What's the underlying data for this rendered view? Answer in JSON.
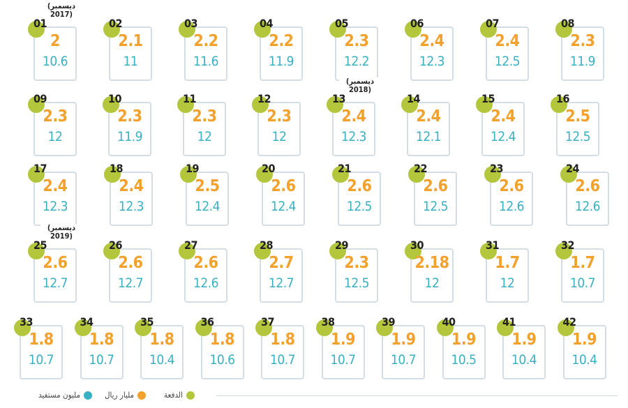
{
  "chart_data": {
    "type": "table",
    "columns": [
      "الدفعة",
      "مليار ريال",
      "مليون مستفيد"
    ],
    "installments": [
      "01",
      "02",
      "03",
      "04",
      "05",
      "06",
      "07",
      "08",
      "09",
      "10",
      "11",
      "12",
      "13",
      "14",
      "15",
      "16",
      "17",
      "18",
      "19",
      "20",
      "21",
      "22",
      "23",
      "24",
      "25",
      "26",
      "27",
      "28",
      "29",
      "30",
      "31",
      "32",
      "33",
      "34",
      "35",
      "36",
      "37",
      "38",
      "39",
      "40",
      "41",
      "42"
    ],
    "billion_riyal": [
      "2",
      "2.1",
      "2.2",
      "2.2",
      "2.3",
      "2.4",
      "2.4",
      "2.3",
      "2.3",
      "2.3",
      "2.3",
      "2.3",
      "2.4",
      "2.4",
      "2.4",
      "2.5",
      "2.4",
      "2.4",
      "2.5",
      "2.6",
      "2.6",
      "2.6",
      "2.6",
      "2.6",
      "2.6",
      "2.6",
      "2.6",
      "2.7",
      "2.3",
      "2.18",
      "1.7",
      "1.7",
      "1.8",
      "1.8",
      "1.8",
      "1.8",
      "1.8",
      "1.9",
      "1.9",
      "1.9",
      "1.9",
      "1.9"
    ],
    "million_beneficiaries": [
      "10.6",
      "11",
      "11.6",
      "11.9",
      "12.2",
      "12.3",
      "12.5",
      "11.9",
      "12",
      "11.9",
      "12",
      "12",
      "12.3",
      "12.1",
      "12.4",
      "12.5",
      "12.3",
      "12.3",
      "12.4",
      "12.4",
      "12.5",
      "12.5",
      "12.6",
      "12.6",
      "12.7",
      "12.7",
      "12.6",
      "12.7",
      "12.5",
      "12",
      "12",
      "10.7",
      "10.7",
      "10.7",
      "10.4",
      "10.6",
      "10.7",
      "10.7",
      "10.7",
      "10.5",
      "10.4",
      "10.4"
    ],
    "annotations": [
      {
        "installment": "01",
        "text": "(ديسمبر 2017)"
      },
      {
        "installment": "13",
        "text": "(ديسمبر 2018)"
      },
      {
        "installment": "25",
        "text": "(ديسمبر 2019)"
      }
    ],
    "legend": {
      "installment": "الدفعة",
      "billion_riyal": "مليار ريال",
      "million_beneficiaries": "مليون مستفيد",
      "placement": "bottom-left"
    },
    "colors": {
      "installment": "#b3c63c",
      "billion_riyal": "#f2a22c",
      "million_beneficiaries": "#37b1c2",
      "frame": "#d4dde3"
    }
  }
}
